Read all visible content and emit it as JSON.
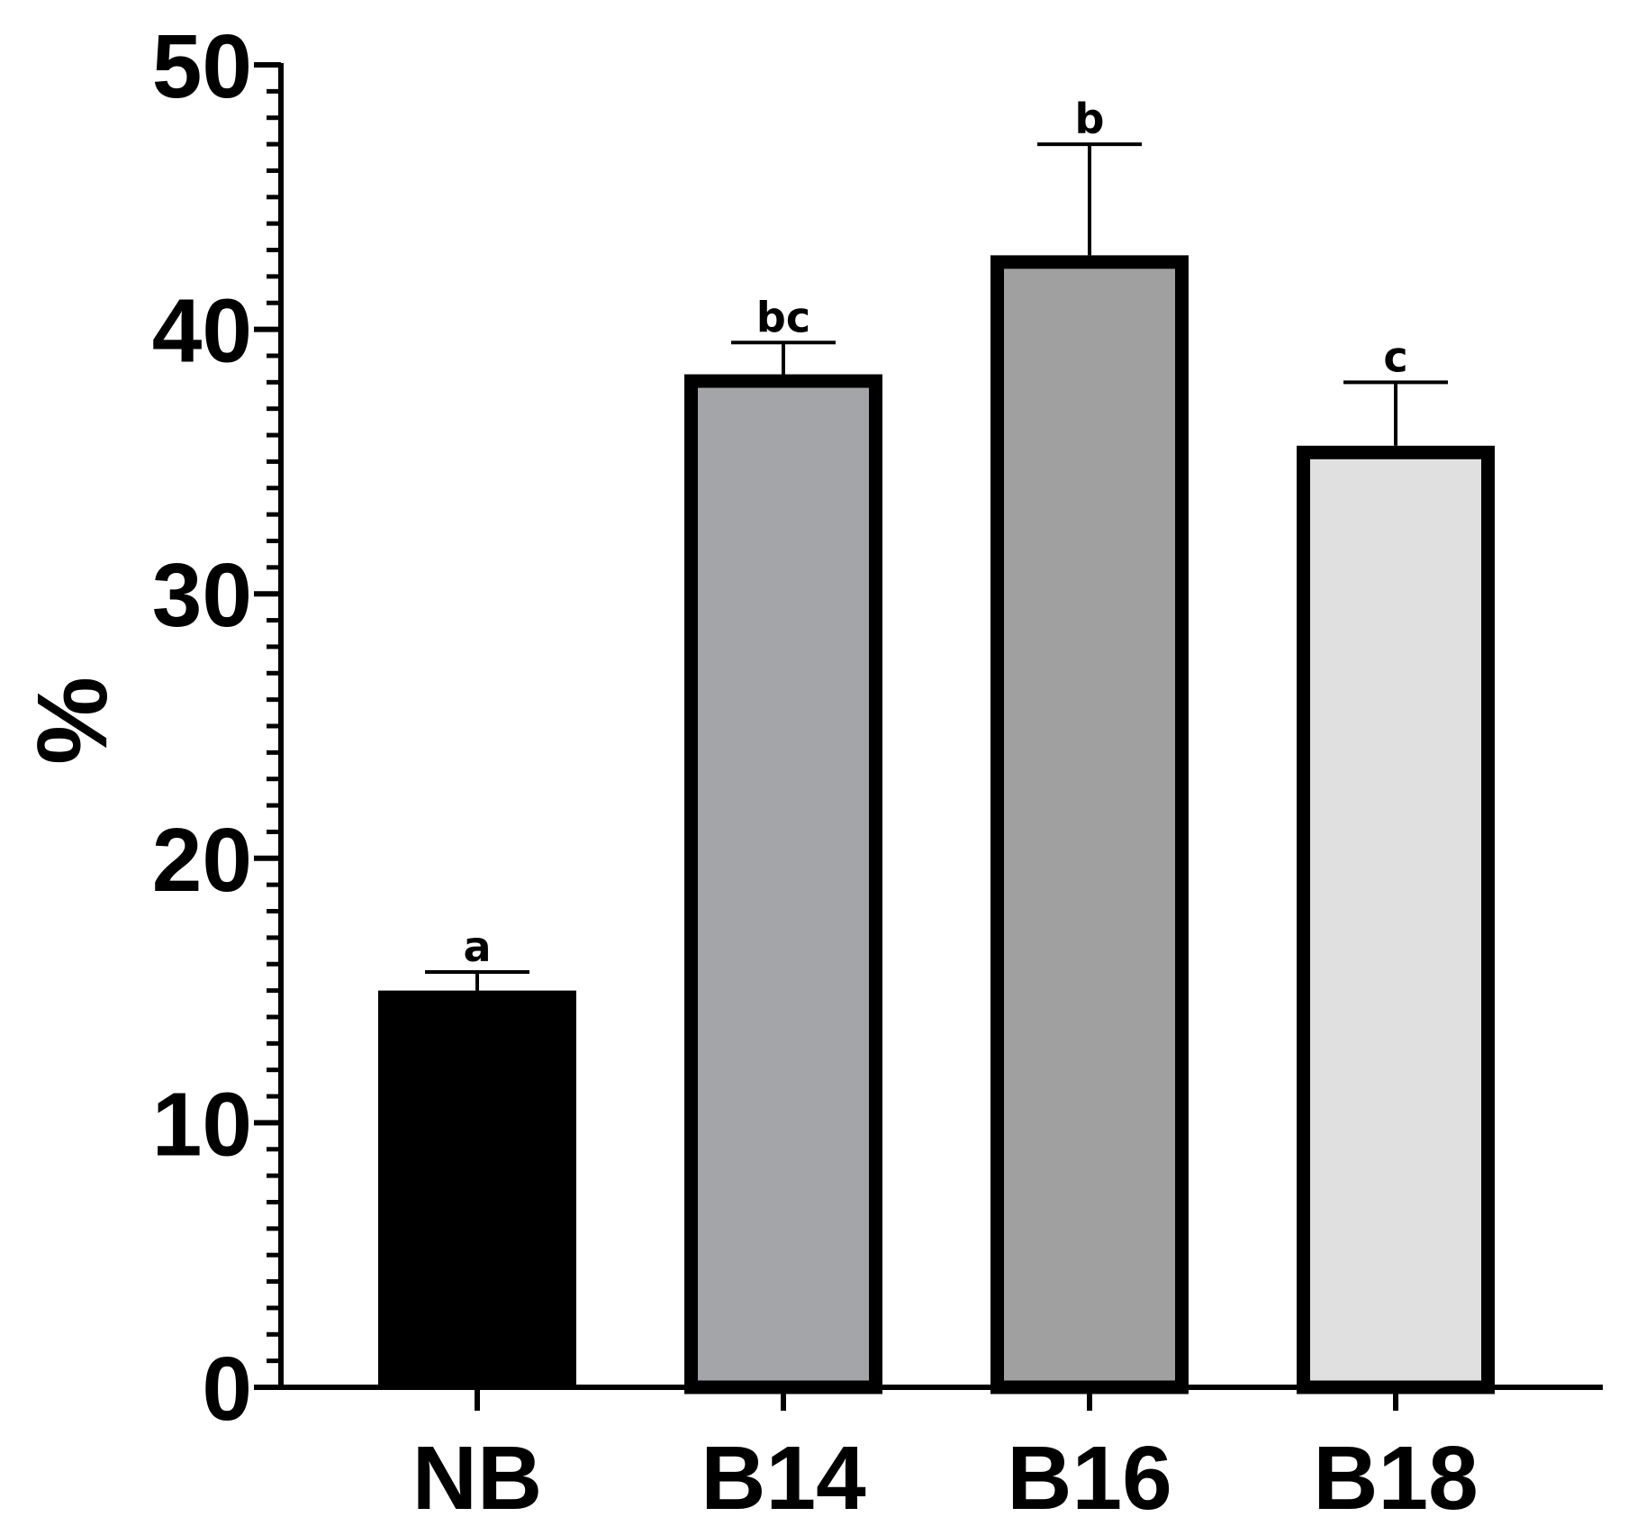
{
  "chart_data": {
    "type": "bar",
    "ylabel": "%",
    "xlabel": "",
    "ylim": [
      0,
      50
    ],
    "y_ticks": [
      "0",
      "10",
      "20",
      "30",
      "40",
      "50"
    ],
    "y_minor_step": 1,
    "categories": [
      "NB",
      "B14",
      "B16",
      "B18"
    ],
    "values": [
      15.0,
      38.3,
      42.8,
      35.6
    ],
    "errors": [
      0.7,
      1.2,
      4.2,
      2.4
    ],
    "significance": [
      "a",
      "bc",
      "b",
      "c"
    ],
    "bar_colors": [
      "#000000",
      "#a4a5a8",
      "#a0a0a0",
      "#e0e0e0"
    ],
    "grid": false,
    "legend": "none"
  }
}
